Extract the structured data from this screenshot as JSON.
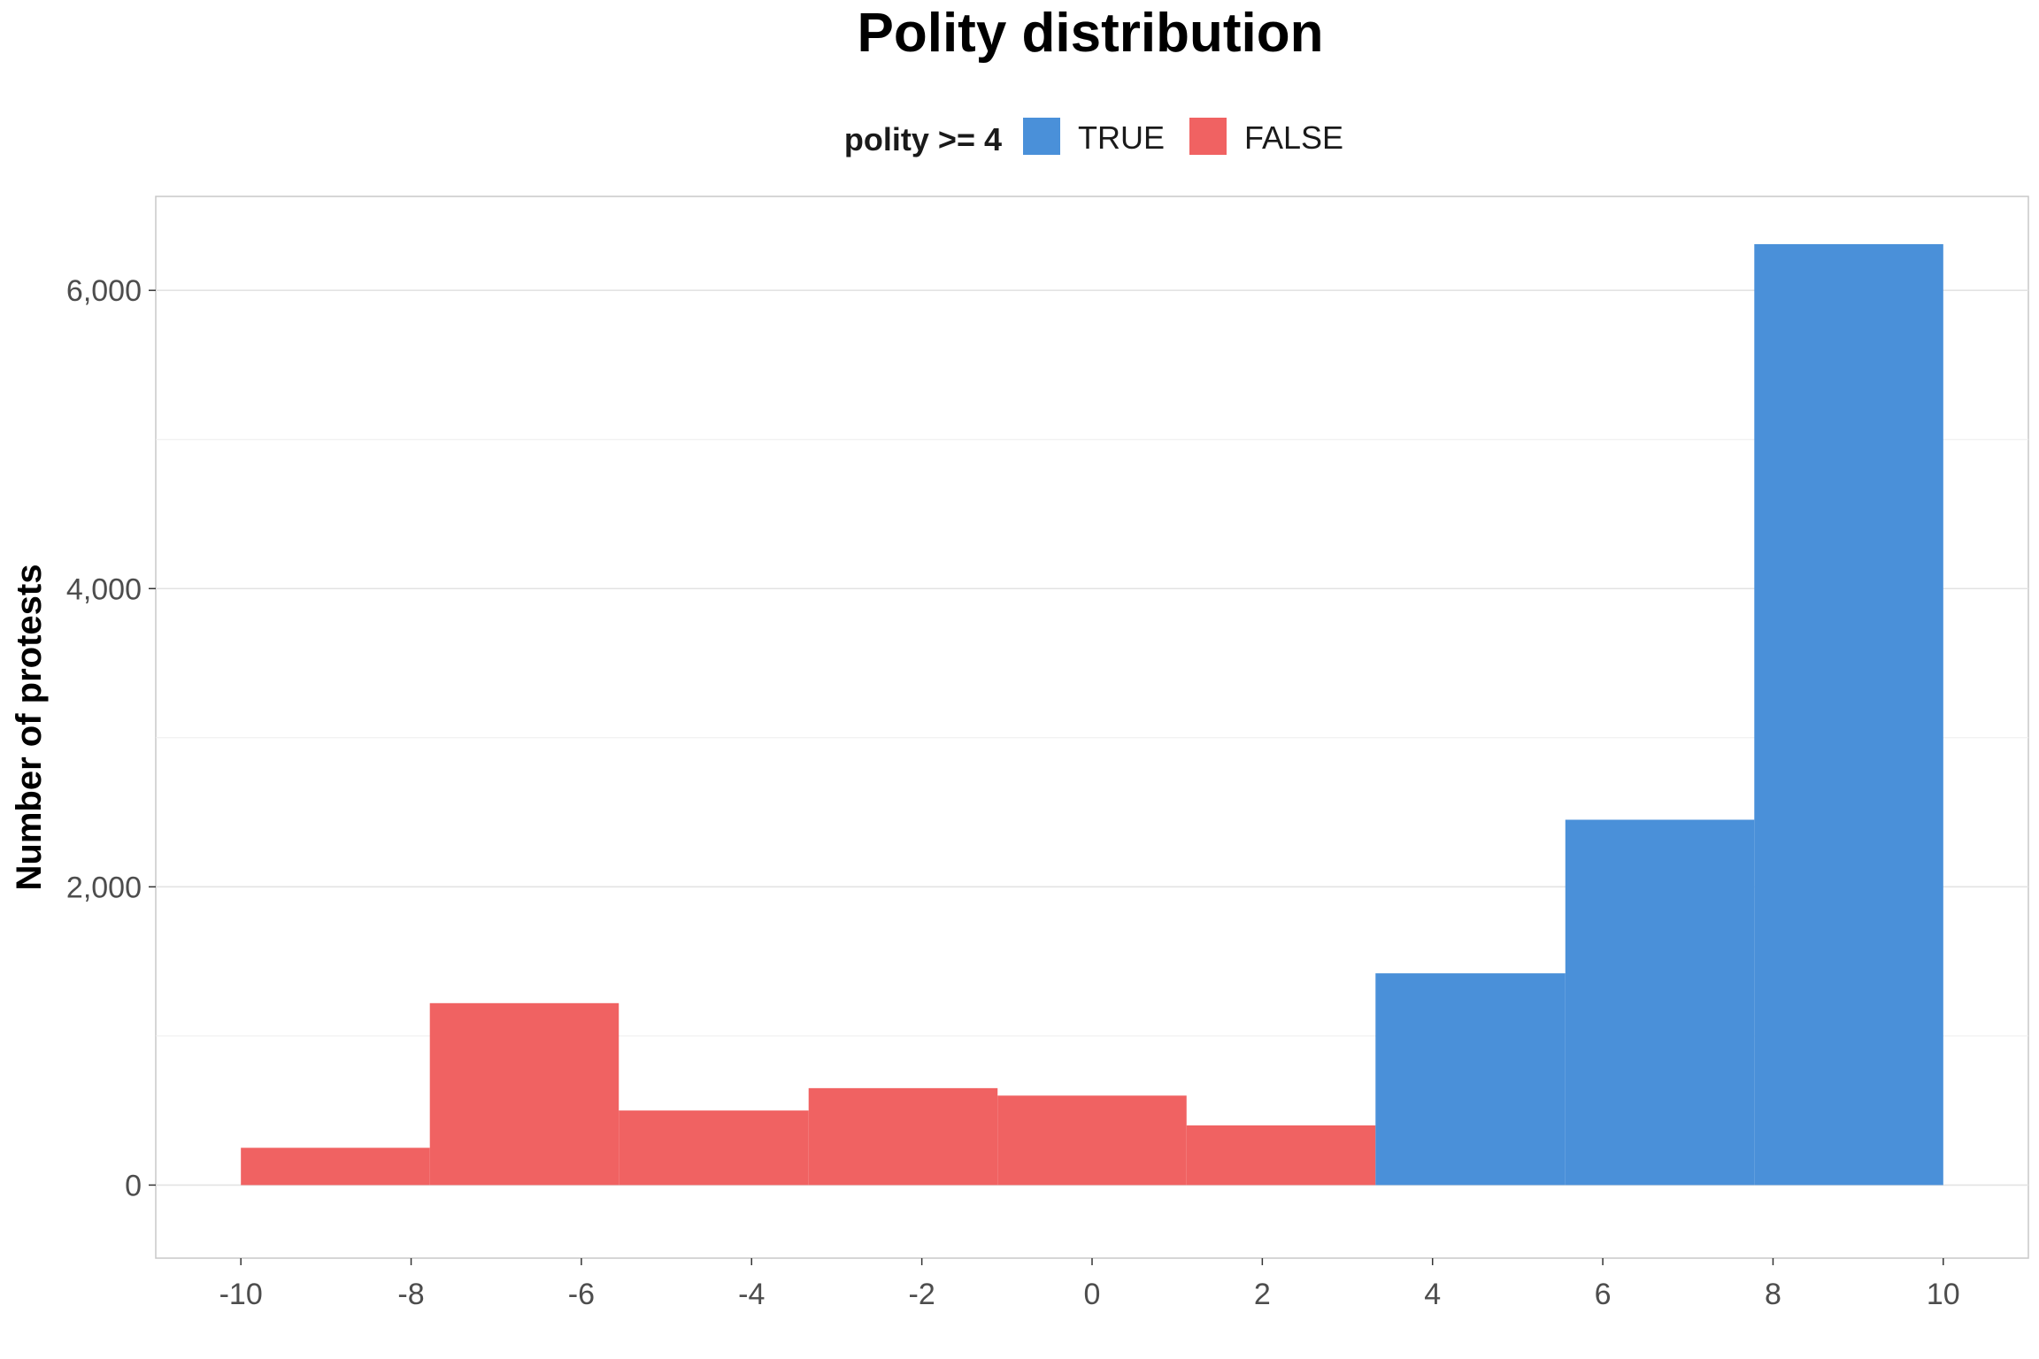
{
  "chart_data": {
    "type": "bar",
    "title": "Polity distribution",
    "xlabel": "",
    "ylabel": "Number of protests",
    "legend": {
      "title": "polity >= 4",
      "position": "top",
      "entries": [
        {
          "label": "TRUE",
          "color": "#4A90D9"
        },
        {
          "label": "FALSE",
          "color": "#F06262"
        }
      ]
    },
    "xlim": [
      -11,
      11
    ],
    "ylim": [
      -490,
      6630
    ],
    "x_ticks": [
      -10,
      -8,
      -6,
      -4,
      -2,
      0,
      2,
      4,
      6,
      8,
      10
    ],
    "x_tick_labels": [
      "-10",
      "-8",
      "-6",
      "-4",
      "-2",
      "0",
      "2",
      "4",
      "6",
      "8",
      "10"
    ],
    "y_ticks": [
      0,
      2000,
      4000,
      6000
    ],
    "y_tick_labels": [
      "0",
      "2,000",
      "4,000",
      "6,000"
    ],
    "grid": true,
    "bins": [
      {
        "x_start": -10.0,
        "x_end": -7.78,
        "value": 250,
        "group": "FALSE"
      },
      {
        "x_start": -7.78,
        "x_end": -5.56,
        "value": 1220,
        "group": "FALSE"
      },
      {
        "x_start": -5.56,
        "x_end": -3.33,
        "value": 500,
        "group": "FALSE"
      },
      {
        "x_start": -3.33,
        "x_end": -1.11,
        "value": 650,
        "group": "FALSE"
      },
      {
        "x_start": -1.11,
        "x_end": 1.11,
        "value": 600,
        "group": "FALSE"
      },
      {
        "x_start": 1.11,
        "x_end": 3.33,
        "value": 400,
        "group": "FALSE"
      },
      {
        "x_start": 3.33,
        "x_end": 5.56,
        "value": 1420,
        "group": "TRUE"
      },
      {
        "x_start": 5.56,
        "x_end": 7.78,
        "value": 2450,
        "group": "TRUE"
      },
      {
        "x_start": 7.78,
        "x_end": 10.0,
        "value": 6310,
        "group": "TRUE"
      }
    ]
  }
}
